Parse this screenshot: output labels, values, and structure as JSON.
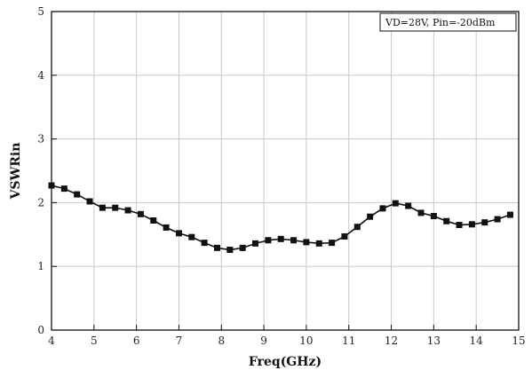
{
  "chart_data": {
    "type": "line",
    "title": "",
    "xlabel": "Freq(GHz)",
    "ylabel": "VSWRin",
    "xlim": [
      4,
      15
    ],
    "ylim": [
      0,
      5
    ],
    "x_ticks": [
      4,
      5,
      6,
      7,
      8,
      9,
      10,
      11,
      12,
      13,
      14,
      15
    ],
    "y_ticks": [
      0,
      1,
      2,
      3,
      4,
      5
    ],
    "grid": true,
    "legend_position": "top-right",
    "legend_text": "VD=28V, Pin=-20dBm",
    "marker": "square",
    "color": "#111111",
    "series": [
      {
        "x": [
          4.0,
          4.3,
          4.6,
          4.9,
          5.2,
          5.5,
          5.8,
          6.1,
          6.4,
          6.7,
          7.0,
          7.3,
          7.6,
          7.9,
          8.2,
          8.5,
          8.8,
          9.1,
          9.4,
          9.7,
          10.0,
          10.3,
          10.6,
          10.9,
          11.2,
          11.5,
          11.8,
          12.1,
          12.4,
          12.7,
          13.0,
          13.3,
          13.6,
          13.9,
          14.2,
          14.5,
          14.8
        ],
        "y": [
          2.27,
          2.22,
          2.13,
          2.02,
          1.92,
          1.92,
          1.88,
          1.82,
          1.72,
          1.61,
          1.52,
          1.46,
          1.37,
          1.29,
          1.26,
          1.29,
          1.36,
          1.41,
          1.43,
          1.41,
          1.38,
          1.36,
          1.37,
          1.47,
          1.62,
          1.78,
          1.91,
          1.99,
          1.95,
          1.84,
          1.79,
          1.71,
          1.65,
          1.66,
          1.69,
          1.74,
          1.81
        ]
      }
    ]
  }
}
